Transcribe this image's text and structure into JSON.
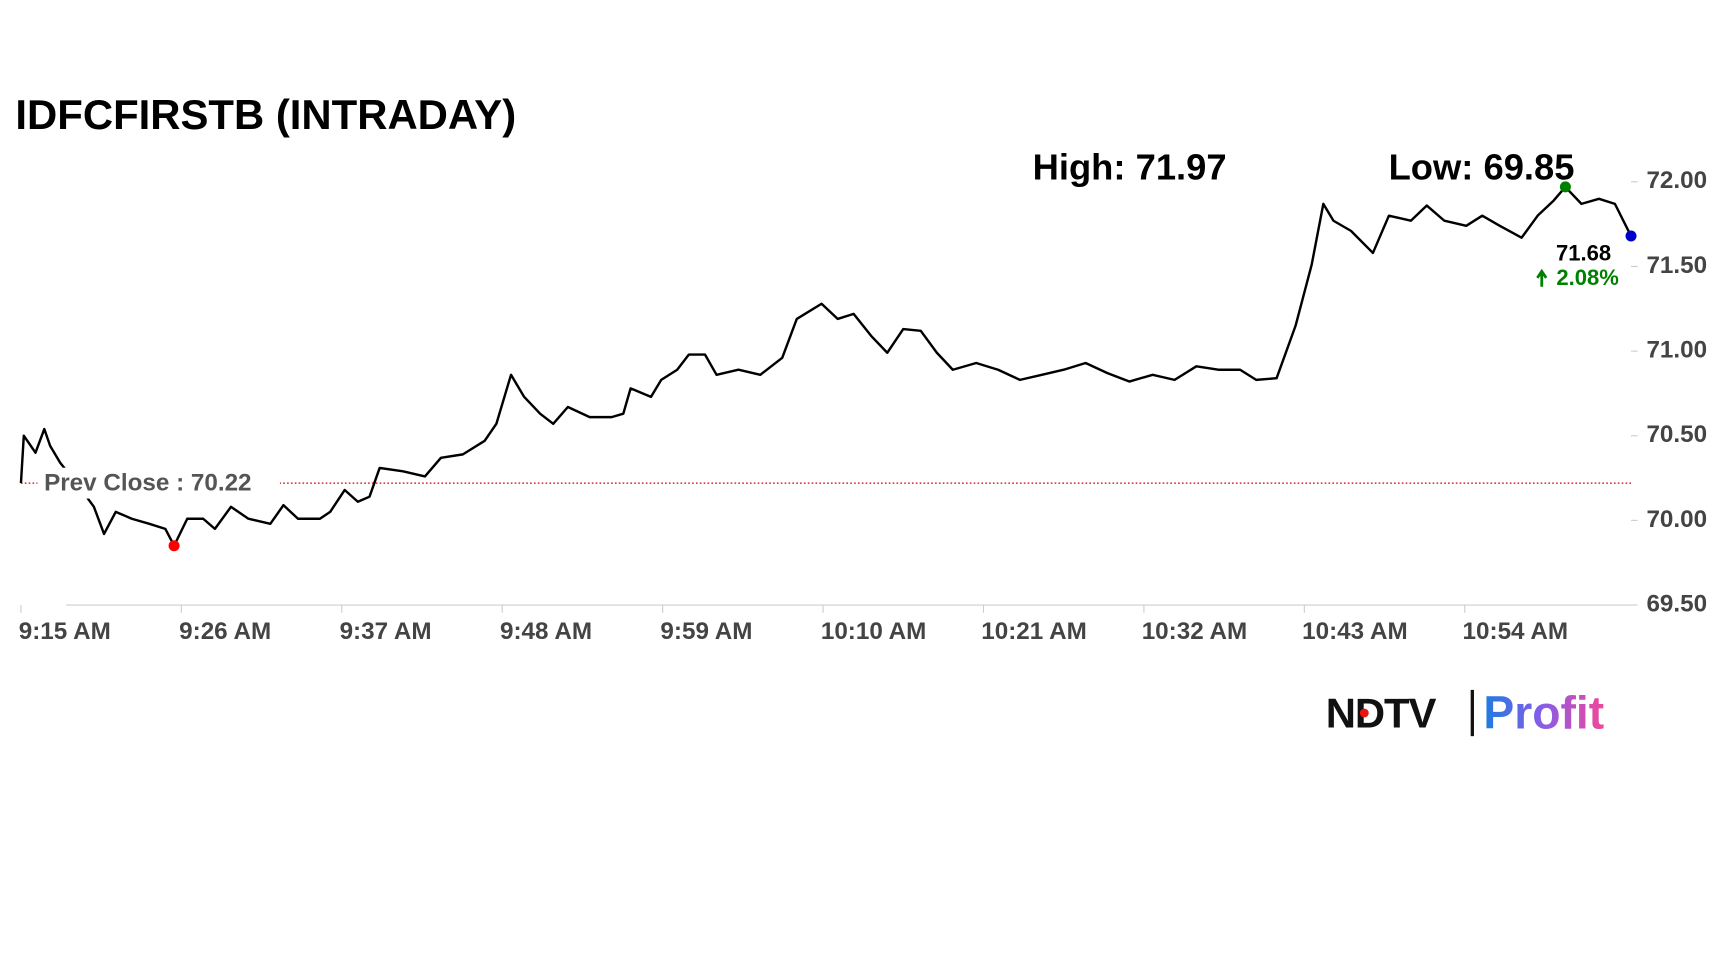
{
  "chart_data": {
    "type": "line",
    "title": "IDFCFIRSTB (INTRADAY)",
    "high_label": "High: 71.97",
    "low_label": "Low: 69.85",
    "prev_close": 70.22,
    "prev_close_label": "Prev Close : 70.22",
    "last_label": "71.68",
    "change_label": "2.08%",
    "logo": {
      "left": "NDTV",
      "right": "Profit"
    },
    "x": [
      555.0,
      555.2,
      556.0,
      556.6,
      557.0,
      557.7,
      558.9,
      560.0,
      560.7,
      561.5,
      562.6,
      563.8,
      564.9,
      565.5,
      566.4,
      567.5,
      568.3,
      569.4,
      570.6,
      572.1,
      573.0,
      574.0,
      575.5,
      576.2,
      577.2,
      578.1,
      578.9,
      579.6,
      581.2,
      582.7,
      583.8,
      585.3,
      586.8,
      587.6,
      588.6,
      589.5,
      590.6,
      591.5,
      592.5,
      594.0,
      595.5,
      596.3,
      596.8,
      598.2,
      598.9,
      600.0,
      600.8,
      601.9,
      602.7,
      604.2,
      605.7,
      607.2,
      608.2,
      609.9,
      611.0,
      612.1,
      613.3,
      614.4,
      615.5,
      616.7,
      617.8,
      618.9,
      620.5,
      622.0,
      623.5,
      625.0,
      626.5,
      628.0,
      629.5,
      631.0,
      632.6,
      634.1,
      635.6,
      637.1,
      638.6,
      639.7,
      641.1,
      642.4,
      643.5,
      644.3,
      645.0,
      646.2,
      647.7,
      648.8,
      650.3,
      651.4,
      652.6,
      654.1,
      655.2,
      656.4,
      657.9,
      659.0,
      660.1,
      660.9,
      662.0,
      663.2,
      664.3,
      665.4
    ],
    "series": [
      {
        "color": "#000000",
        "values": [
          70.22,
          70.5,
          70.4,
          70.54,
          70.44,
          70.34,
          70.21,
          70.08,
          69.92,
          70.05,
          70.01,
          69.98,
          69.95,
          69.85,
          70.01,
          70.01,
          69.95,
          70.08,
          70.01,
          69.98,
          70.09,
          70.01,
          70.01,
          70.05,
          70.18,
          70.11,
          70.14,
          70.31,
          70.29,
          70.26,
          70.37,
          70.39,
          70.47,
          70.57,
          70.86,
          70.73,
          70.63,
          70.57,
          70.67,
          70.61,
          70.61,
          70.63,
          70.78,
          70.73,
          70.83,
          70.89,
          70.98,
          70.98,
          70.86,
          70.89,
          70.86,
          70.96,
          71.19,
          71.28,
          71.19,
          71.22,
          71.09,
          70.99,
          71.13,
          71.12,
          70.99,
          70.89,
          70.93,
          70.89,
          70.83,
          70.86,
          70.89,
          70.93,
          70.87,
          70.82,
          70.86,
          70.83,
          70.91,
          70.89,
          70.89,
          70.83,
          70.84,
          71.15,
          71.51,
          71.87,
          71.77,
          71.71,
          71.58,
          71.8,
          71.77,
          71.86,
          71.77,
          71.74,
          71.8,
          71.74,
          71.67,
          71.8,
          71.89,
          71.97,
          71.87,
          71.9,
          71.87,
          71.68
        ]
      }
    ],
    "low_color": "#ff0000",
    "high_color": "#008000",
    "last_color": "#0000cc",
    "change_color": "#008000",
    "prev_close_color": "#cc0000",
    "xlim": [
      555,
      665.4
    ],
    "xticks": [
      {
        "value": 555,
        "label": "9:15 AM"
      },
      {
        "value": 566,
        "label": "9:26 AM"
      },
      {
        "value": 577,
        "label": "9:37 AM"
      },
      {
        "value": 588,
        "label": "9:48 AM"
      },
      {
        "value": 599,
        "label": "9:59 AM"
      },
      {
        "value": 610,
        "label": "10:10 AM"
      },
      {
        "value": 621,
        "label": "10:21 AM"
      },
      {
        "value": 632,
        "label": "10:32 AM"
      },
      {
        "value": 643,
        "label": "10:43 AM"
      },
      {
        "value": 654,
        "label": "10:54 AM"
      }
    ],
    "ylim": [
      69.5,
      72.0
    ],
    "yticks": [
      {
        "value": 69.5,
        "label": "69.50"
      },
      {
        "value": 70.0,
        "label": "70.00"
      },
      {
        "value": 70.5,
        "label": "70.50"
      },
      {
        "value": 71.0,
        "label": "71.00"
      },
      {
        "value": 71.5,
        "label": "71.50"
      },
      {
        "value": 72.0,
        "label": "72.00"
      }
    ],
    "grid": false
  }
}
